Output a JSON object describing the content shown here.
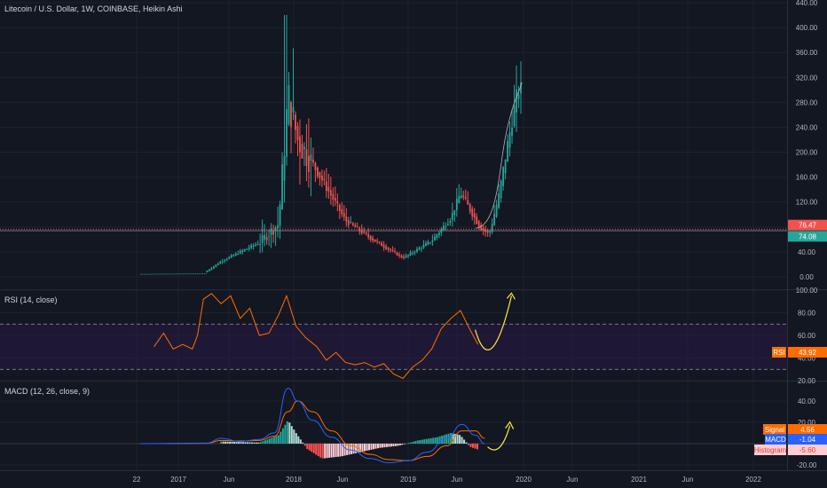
{
  "header": {
    "title": "Litecoin / U.S. Dollar, 1W, COINBASE, Heikin Ashi",
    "rsi_title": "RSI (14, close)",
    "macd_title": "MACD (12, 26, close, 9)"
  },
  "colors": {
    "background": "#131722",
    "up": "#26a69a",
    "down": "#ef5350",
    "rsi_line": "#ff6d00",
    "rsi_band": "#2a1a45",
    "macd_line": "#2962ff",
    "signal_line": "#ff6d00",
    "hist_up_strong": "#26a69a",
    "hist_up_weak": "#b2dfdb",
    "hist_down_strong": "#ff5252",
    "hist_down_weak": "#ffcdd2",
    "annotation": "#ffeb3b",
    "price_badge_red": "#ef5350",
    "price_badge_green": "#26a69a"
  },
  "x_axis": {
    "labels": [
      "22",
      "2017",
      "Jun",
      "2018",
      "Jun",
      "2019",
      "Jun",
      "2020",
      "Jun",
      "2021",
      "Jun",
      "2022"
    ]
  },
  "badges": {
    "price_red": "76.47",
    "price_green": "74.08",
    "rsi_label": "RSI",
    "rsi_value": "43.92",
    "signal_label": "Signal",
    "signal_value": "4.56",
    "macd_label": "MACD",
    "macd_value": "-1.04",
    "hist_label": "Histogram",
    "hist_value": "-5.60"
  },
  "chart_data": [
    {
      "type": "candlestick",
      "title": "Litecoin / U.S. Dollar, 1W, COINBASE, Heikin Ashi",
      "ylim": [
        -5,
        440
      ],
      "y_ticks": [
        "440.00",
        "400.00",
        "360.00",
        "320.00",
        "280.00",
        "240.00",
        "200.00",
        "160.00",
        "120.00",
        "80.00",
        "40.00",
        "0.00"
      ],
      "y_tick_values": [
        440,
        400,
        360,
        320,
        280,
        240,
        200,
        160,
        120,
        80,
        40,
        0
      ],
      "x_range": [
        "2016-08",
        "2022-06"
      ],
      "key_points": [
        {
          "date": "2016-09",
          "close": 3.5
        },
        {
          "date": "2017-03",
          "close": 4
        },
        {
          "date": "2017-05",
          "close": 25
        },
        {
          "date": "2017-09",
          "close": 55
        },
        {
          "date": "2017-11",
          "close": 85
        },
        {
          "date": "2017-12",
          "close": 290,
          "high": 420
        },
        {
          "date": "2018-01",
          "close": 220
        },
        {
          "date": "2018-03",
          "close": 170
        },
        {
          "date": "2018-06",
          "close": 90
        },
        {
          "date": "2018-09",
          "close": 58
        },
        {
          "date": "2018-12",
          "close": 30
        },
        {
          "date": "2019-03",
          "close": 58
        },
        {
          "date": "2019-05",
          "close": 95
        },
        {
          "date": "2019-06",
          "close": 135
        },
        {
          "date": "2019-08",
          "close": 80
        },
        {
          "date": "2019-09",
          "close": 68
        },
        {
          "date": "2019-10",
          "close": 130
        },
        {
          "date": "2019-11",
          "close": 220
        },
        {
          "date": "2019-12",
          "close": 300
        }
      ]
    },
    {
      "type": "line",
      "title": "RSI (14, close)",
      "ylim": [
        12,
        100
      ],
      "y_ticks": [
        "100.00",
        "80.00",
        "60.00",
        "40.00",
        "20.00"
      ],
      "y_tick_values": [
        100,
        80,
        60,
        40,
        20
      ],
      "band": [
        30,
        70
      ],
      "series": [
        {
          "name": "RSI",
          "points": [
            [
              "2016-10-15",
              50
            ],
            [
              "2016-11-15",
              62
            ],
            [
              "2016-12-15",
              48
            ],
            [
              "2017-01-15",
              52
            ],
            [
              "2017-02-15",
              48
            ],
            [
              "2017-03-01",
              60
            ],
            [
              "2017-03-20",
              92
            ],
            [
              "2017-04-15",
              97
            ],
            [
              "2017-05-15",
              88
            ],
            [
              "2017-06-15",
              95
            ],
            [
              "2017-07-15",
              75
            ],
            [
              "2017-08-15",
              84
            ],
            [
              "2017-09-15",
              60
            ],
            [
              "2017-10-15",
              62
            ],
            [
              "2017-11-15",
              78
            ],
            [
              "2017-12-10",
              95
            ],
            [
              "2018-01-10",
              68
            ],
            [
              "2018-02-10",
              58
            ],
            [
              "2018-03-15",
              50
            ],
            [
              "2018-04-15",
              38
            ],
            [
              "2018-05-15",
              45
            ],
            [
              "2018-06-15",
              36
            ],
            [
              "2018-07-15",
              34
            ],
            [
              "2018-08-15",
              36
            ],
            [
              "2018-09-15",
              32
            ],
            [
              "2018-10-15",
              35
            ],
            [
              "2018-11-15",
              26
            ],
            [
              "2018-12-15",
              22
            ],
            [
              "2019-01-15",
              32
            ],
            [
              "2019-02-15",
              38
            ],
            [
              "2019-03-15",
              48
            ],
            [
              "2019-04-15",
              66
            ],
            [
              "2019-05-15",
              75
            ],
            [
              "2019-06-15",
              82
            ],
            [
              "2019-07-15",
              65
            ],
            [
              "2019-08-10",
              52
            ]
          ]
        }
      ],
      "annotation": "hand-drawn curved arrow pointing up"
    },
    {
      "type": "line",
      "title": "MACD (12, 26, close, 9)",
      "ylim": [
        -28,
        62
      ],
      "y_ticks": [
        "40.00",
        "20.00",
        "0.00",
        "-20.00"
      ],
      "y_tick_values": [
        40,
        20,
        0,
        -20
      ],
      "series": [
        {
          "name": "MACD",
          "points": [
            [
              "2016-09-01",
              0
            ],
            [
              "2017-04-01",
              0.5
            ],
            [
              "2017-05-15",
              5
            ],
            [
              "2017-07-15",
              2
            ],
            [
              "2017-09-15",
              4
            ],
            [
              "2017-11-01",
              10
            ],
            [
              "2017-12-15",
              52
            ],
            [
              "2018-01-15",
              40
            ],
            [
              "2018-03-01",
              22
            ],
            [
              "2018-05-01",
              6
            ],
            [
              "2018-07-01",
              -6
            ],
            [
              "2018-09-01",
              -14
            ],
            [
              "2018-11-01",
              -18
            ],
            [
              "2019-01-01",
              -16
            ],
            [
              "2019-03-01",
              -8
            ],
            [
              "2019-05-01",
              5
            ],
            [
              "2019-06-20",
              18
            ],
            [
              "2019-08-01",
              8
            ],
            [
              "2019-09-01",
              0
            ]
          ]
        },
        {
          "name": "Signal",
          "points": [
            [
              "2016-09-01",
              0
            ],
            [
              "2017-04-01",
              0.3
            ],
            [
              "2017-05-15",
              3
            ],
            [
              "2017-07-15",
              2.5
            ],
            [
              "2017-09-15",
              3
            ],
            [
              "2017-11-01",
              7
            ],
            [
              "2017-12-15",
              30
            ],
            [
              "2018-01-15",
              40
            ],
            [
              "2018-03-01",
              30
            ],
            [
              "2018-05-01",
              12
            ],
            [
              "2018-07-01",
              -2
            ],
            [
              "2018-09-01",
              -10
            ],
            [
              "2018-11-01",
              -15
            ],
            [
              "2019-01-01",
              -16
            ],
            [
              "2019-03-01",
              -12
            ],
            [
              "2019-05-01",
              -2
            ],
            [
              "2019-06-20",
              12
            ],
            [
              "2019-08-01",
              12
            ],
            [
              "2019-09-01",
              5
            ]
          ]
        },
        {
          "name": "Histogram",
          "points": [
            [
              "2017-05-15",
              2
            ],
            [
              "2017-09-15",
              1
            ],
            [
              "2017-11-15",
              8
            ],
            [
              "2017-12-15",
              22
            ],
            [
              "2018-01-10",
              10
            ],
            [
              "2018-02-15",
              -5
            ],
            [
              "2018-04-01",
              -14
            ],
            [
              "2018-06-01",
              -12
            ],
            [
              "2018-08-01",
              -8
            ],
            [
              "2018-10-01",
              -4
            ],
            [
              "2018-12-01",
              -2
            ],
            [
              "2019-02-01",
              3
            ],
            [
              "2019-04-01",
              6
            ],
            [
              "2019-05-15",
              10
            ],
            [
              "2019-06-15",
              8
            ],
            [
              "2019-07-15",
              -3
            ],
            [
              "2019-08-15",
              -6
            ]
          ]
        }
      ],
      "annotation": "hand-drawn curved arrow pointing up"
    }
  ]
}
